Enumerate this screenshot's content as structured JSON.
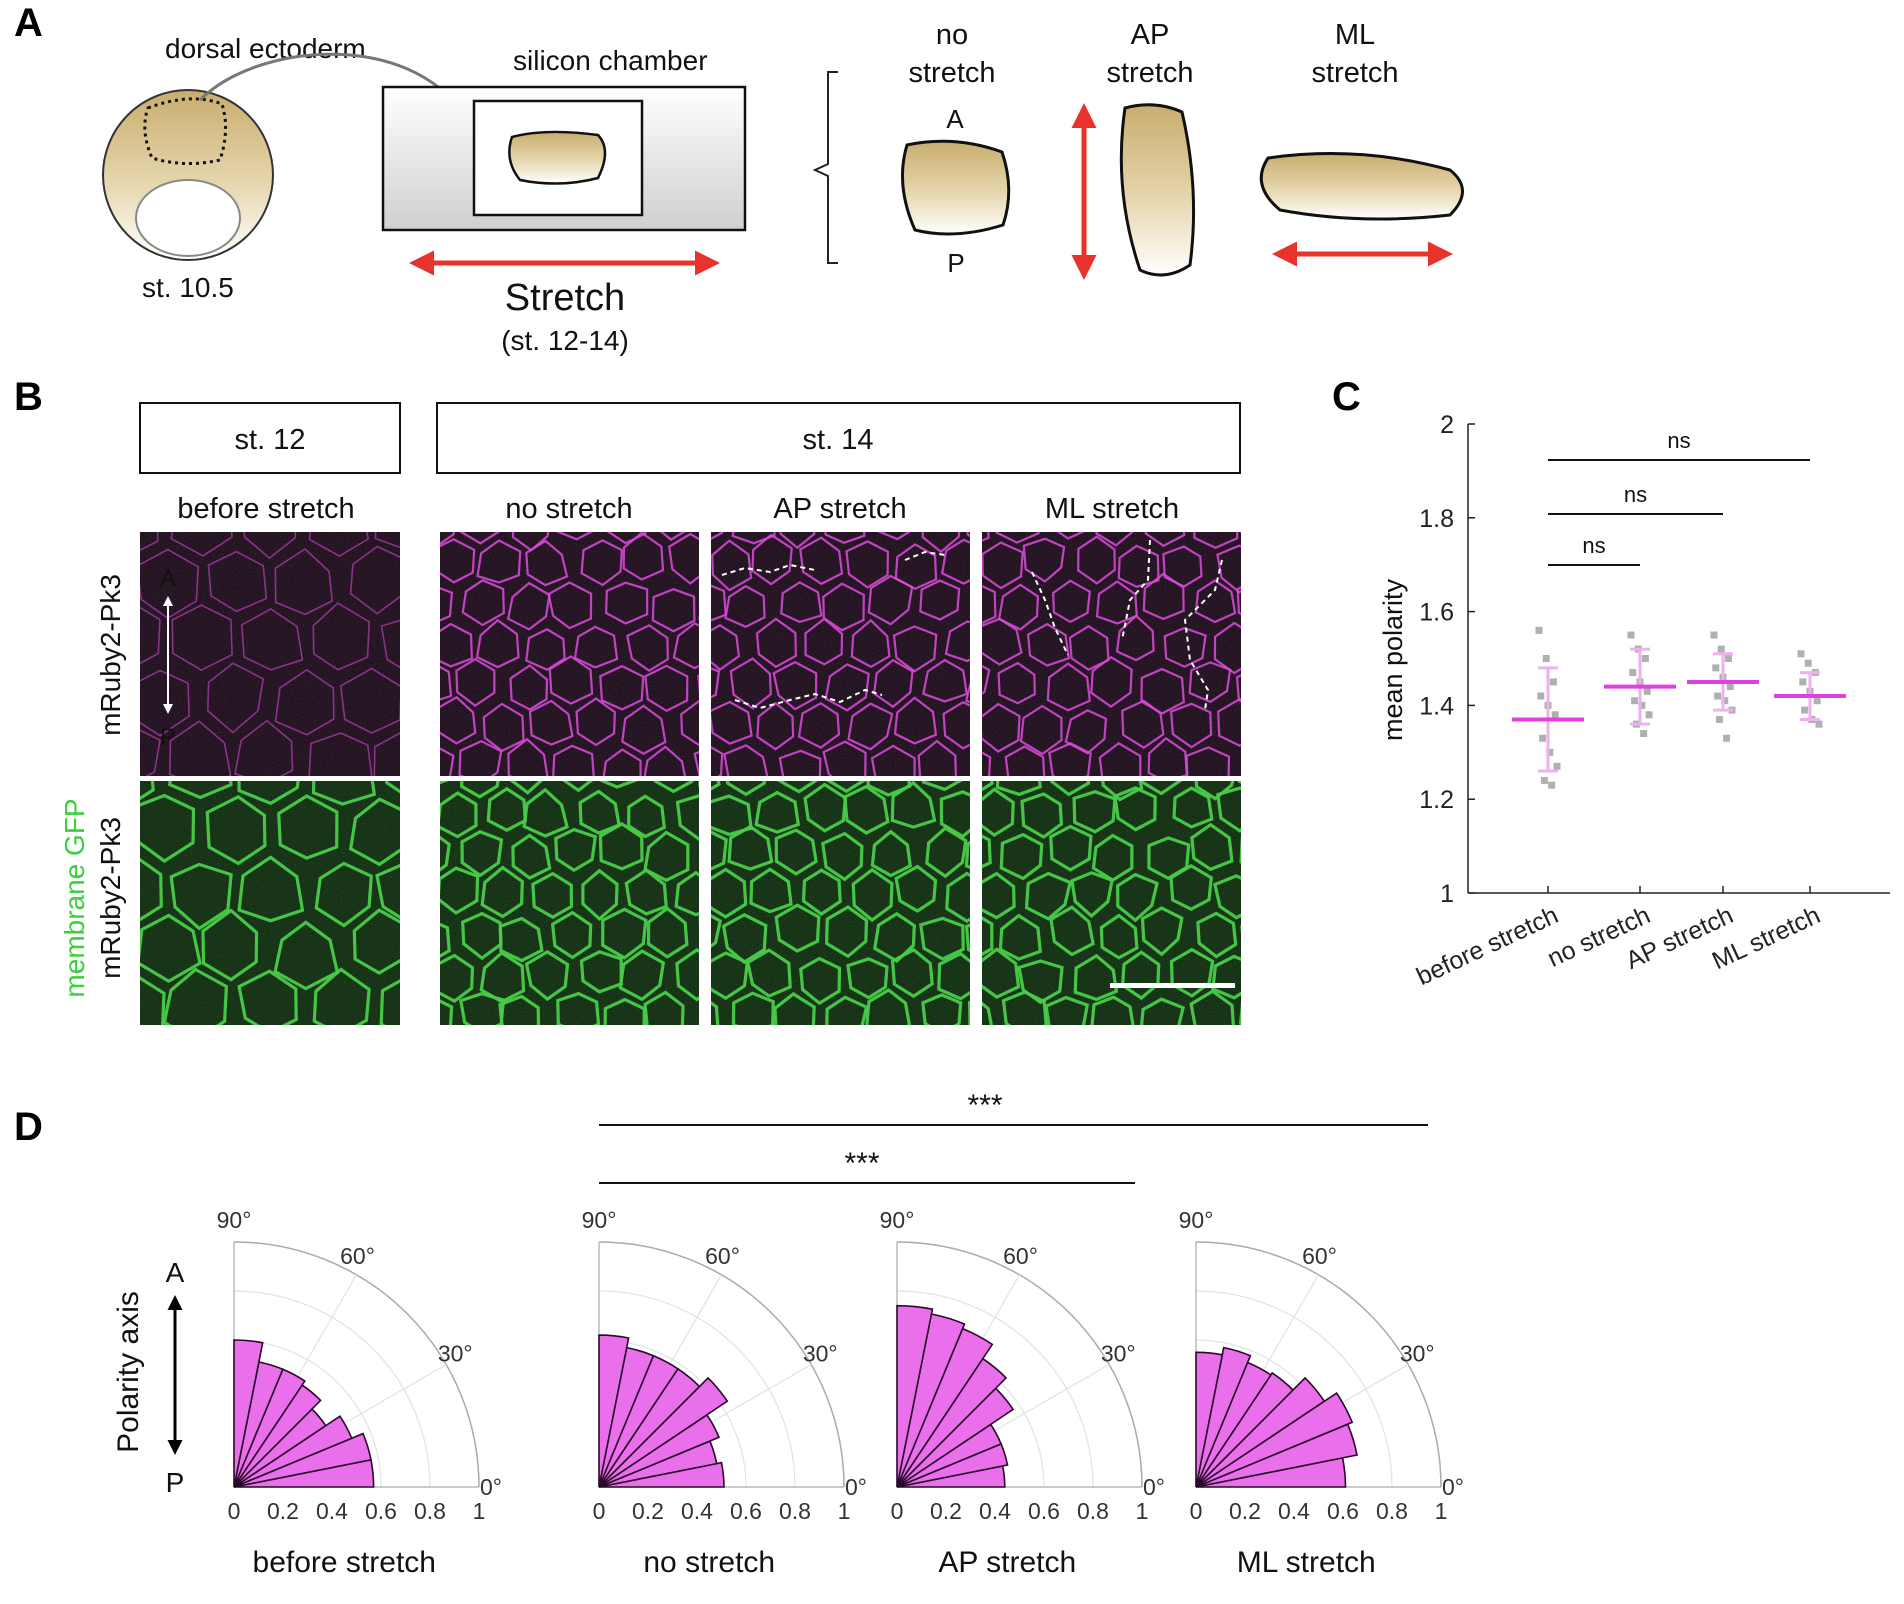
{
  "panel_labels": [
    "A",
    "B",
    "C",
    "D"
  ],
  "panel_a": {
    "embryo_region_label": "dorsal ectoderm",
    "embryo_stage": "st. 10.5",
    "chamber_label": "silicon chamber",
    "stretch_label": "Stretch",
    "stretch_stage": "(st. 12-14)",
    "conditions": [
      {
        "line1": "no",
        "line2": "stretch"
      },
      {
        "line1": "AP",
        "line2": "stretch"
      },
      {
        "line1": "ML",
        "line2": "stretch"
      }
    ],
    "anterior": "A",
    "posterior": "P"
  },
  "panel_b": {
    "stage_early": "st. 12",
    "stage_late": "st. 14",
    "column_titles": [
      "before stretch",
      "no stretch",
      "AP stretch",
      "ML stretch"
    ],
    "row1_label": "mRuby2-Pk3",
    "row2_label_green": "membrane GFP",
    "row2_label_magenta": "mRuby2-Pk3",
    "axis_top": "A",
    "axis_bottom": "P",
    "colors": {
      "magenta": "#e040e0",
      "green": "#3ccf3c",
      "dark": "#160414"
    }
  },
  "panel_c": {
    "chart_data": {
      "type": "scatter",
      "ylabel": "mean polarity",
      "ylim": [
        1,
        2
      ],
      "yticks": [
        "1",
        "1.2",
        "1.4",
        "1.6",
        "1.8",
        "2"
      ],
      "categories": [
        "before stretch",
        "no stretch",
        "AP stretch",
        "ML stretch"
      ],
      "means": [
        1.37,
        1.44,
        1.45,
        1.42
      ],
      "sd": [
        0.11,
        0.08,
        0.06,
        0.05
      ],
      "points": [
        [
          1.56,
          1.5,
          1.45,
          1.42,
          1.4,
          1.38,
          1.33,
          1.3,
          1.27,
          1.24,
          1.23
        ],
        [
          1.55,
          1.52,
          1.5,
          1.47,
          1.45,
          1.43,
          1.41,
          1.4,
          1.38,
          1.36,
          1.34
        ],
        [
          1.55,
          1.52,
          1.5,
          1.48,
          1.46,
          1.44,
          1.42,
          1.41,
          1.39,
          1.37,
          1.33
        ],
        [
          1.51,
          1.49,
          1.47,
          1.45,
          1.43,
          1.41,
          1.39,
          1.37,
          1.36
        ]
      ],
      "significance": [
        {
          "from": 0,
          "to": 1,
          "label": "ns"
        },
        {
          "from": 0,
          "to": 2,
          "label": "ns"
        },
        {
          "from": 0,
          "to": 3,
          "label": "ns"
        }
      ],
      "mean_color": "#e040e0",
      "point_color": "#b0b0b0",
      "grid": false
    }
  },
  "panel_d": {
    "axis_label": "Polarity axis",
    "axis_top": "A",
    "axis_bottom": "P",
    "significance": [
      {
        "label": "***",
        "from": 1,
        "to": 3
      },
      {
        "label": "***",
        "from": 1,
        "to": 2
      }
    ],
    "chart_data": {
      "type": "polar_histogram",
      "theta_ticks": [
        "0°",
        "30°",
        "60°",
        "90°"
      ],
      "r_ticks": [
        "0",
        "0.2",
        "0.4",
        "0.6",
        "0.8",
        "1"
      ],
      "rlim": [
        0,
        1
      ],
      "bin_edges_deg": [
        0,
        11.25,
        22.5,
        33.75,
        45,
        56.25,
        67.5,
        78.75,
        90
      ],
      "bar_color": "#ea6fea",
      "series": [
        {
          "name": "before stretch",
          "values": [
            0.57,
            0.57,
            0.52,
            0.45,
            0.5,
            0.52,
            0.52,
            0.6
          ]
        },
        {
          "name": "no stretch",
          "values": [
            0.51,
            0.49,
            0.53,
            0.63,
            0.58,
            0.58,
            0.58,
            0.62
          ]
        },
        {
          "name": "AP stretch",
          "values": [
            0.44,
            0.46,
            0.46,
            0.57,
            0.63,
            0.7,
            0.72,
            0.74
          ]
        },
        {
          "name": "ML stretch",
          "values": [
            0.61,
            0.67,
            0.69,
            0.63,
            0.56,
            0.55,
            0.58,
            0.55
          ]
        }
      ],
      "grid": true
    }
  }
}
